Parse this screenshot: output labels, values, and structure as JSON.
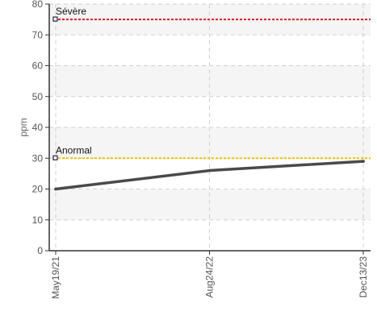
{
  "chart_data": {
    "type": "line",
    "title": "",
    "ylabel": "ppm",
    "xlabel": "",
    "ylim": [
      0,
      80
    ],
    "yticks": [
      0,
      10,
      20,
      30,
      40,
      50,
      60,
      70,
      80
    ],
    "yticks_labels": [
      "0",
      "10",
      "20",
      "30",
      "40",
      "50",
      "60",
      "70",
      "80"
    ],
    "x": [
      "May19/21",
      "Aug24/22",
      "Dec13/23"
    ],
    "series": [
      {
        "values": [
          20,
          26,
          29
        ],
        "color": "#4a4a4a"
      }
    ],
    "thresholds": [
      {
        "label": "Sévère",
        "value": 75,
        "color": "#e8181e"
      },
      {
        "label": "Anormal",
        "value": 30,
        "color": "#f2c200"
      }
    ],
    "grid": true,
    "band_color": "#f5f5f5",
    "grid_color": "#d0d0d0"
  }
}
